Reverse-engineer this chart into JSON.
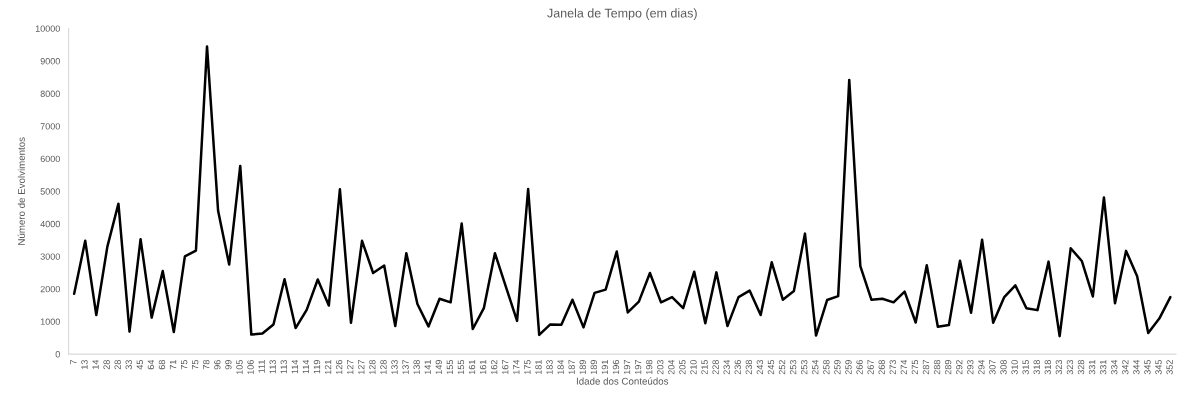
{
  "chart_data": {
    "type": "line",
    "title": "Janela de Tempo (em dias)",
    "xlabel": "Idade dos Conteúdos",
    "ylabel": "Número de Evolvimentos",
    "categories": [
      "7",
      "13",
      "14",
      "28",
      "28",
      "33",
      "45",
      "64",
      "68",
      "71",
      "75",
      "75",
      "78",
      "96",
      "99",
      "105",
      "106",
      "111",
      "113",
      "113",
      "114",
      "114",
      "119",
      "121",
      "126",
      "127",
      "127",
      "128",
      "128",
      "133",
      "137",
      "138",
      "141",
      "149",
      "155",
      "155",
      "161",
      "161",
      "162",
      "167",
      "174",
      "175",
      "181",
      "183",
      "184",
      "187",
      "189",
      "189",
      "191",
      "196",
      "197",
      "197",
      "198",
      "203",
      "204",
      "205",
      "210",
      "215",
      "228",
      "234",
      "236",
      "238",
      "243",
      "245",
      "252",
      "253",
      "253",
      "254",
      "258",
      "259",
      "259",
      "266",
      "267",
      "268",
      "273",
      "274",
      "275",
      "287",
      "288",
      "289",
      "292",
      "293",
      "294",
      "307",
      "308",
      "310",
      "315",
      "318",
      "318",
      "323",
      "323",
      "328",
      "331",
      "331",
      "334",
      "342",
      "344",
      "345",
      "345",
      "352"
    ],
    "series": [
      {
        "color": "#000000",
        "values": [
          1850,
          3480,
          1200,
          3300,
          4620,
          690,
          3530,
          1120,
          2550,
          680,
          3000,
          3180,
          9450,
          4400,
          2750,
          5780,
          600,
          630,
          910,
          2300,
          800,
          1360,
          2290,
          1490,
          5060,
          960,
          3480,
          2490,
          2720,
          860,
          3100,
          1540,
          850,
          1700,
          1590,
          4010,
          770,
          1410,
          3100,
          2060,
          1020,
          5070,
          590,
          910,
          900,
          1670,
          820,
          1880,
          1980,
          3150,
          1280,
          1610,
          2490,
          1590,
          1750,
          1410,
          2530,
          950,
          2510,
          860,
          1750,
          1950,
          1200,
          2820,
          1670,
          1940,
          3700,
          570,
          1660,
          1780,
          8420,
          2700,
          1670,
          1700,
          1590,
          1920,
          970,
          2730,
          840,
          890,
          2870,
          1270,
          3510,
          960,
          1750,
          2110,
          1410,
          1350,
          2840,
          550,
          3250,
          2860,
          1770,
          4810,
          1560,
          3170,
          2390,
          650,
          1090,
          1750
        ]
      }
    ],
    "ylim": [
      0,
      10000
    ],
    "yticks": [
      0,
      1000,
      2000,
      3000,
      4000,
      5000,
      6000,
      7000,
      8000,
      9000,
      10000
    ],
    "grid": false,
    "marker": "none",
    "line_style": "solid"
  }
}
